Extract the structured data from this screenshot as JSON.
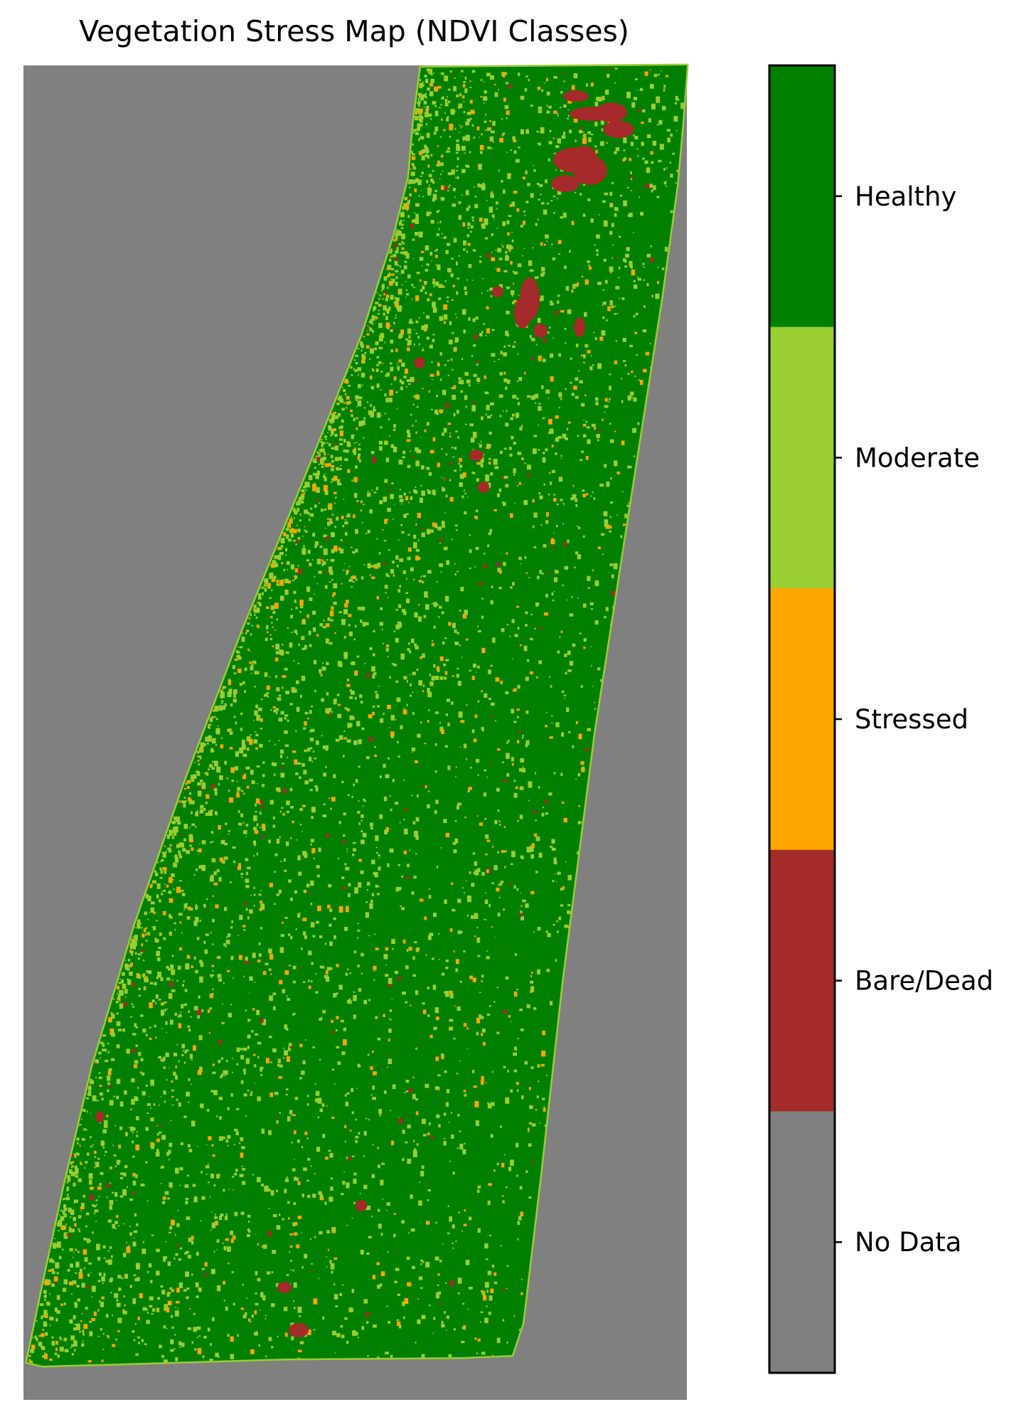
{
  "title": "Vegetation Stress Map (NDVI Classes)",
  "colors": {
    "no_data": "#808080",
    "bare_dead": "#a52a2a",
    "stressed": "#ffa500",
    "moderate": "#9acd32",
    "healthy": "#008000"
  },
  "colorbar": {
    "classes": [
      {
        "label": "Healthy",
        "color": "#008000"
      },
      {
        "label": "Moderate",
        "color": "#9acd32"
      },
      {
        "label": "Stressed",
        "color": "#ffa500"
      },
      {
        "label": "Bare/Dead",
        "color": "#a52a2a"
      },
      {
        "label": "No Data",
        "color": "#808080"
      }
    ]
  },
  "chart_data": {
    "type": "heatmap",
    "title": "Vegetation Stress Map (NDVI Classes)",
    "classes": [
      "No Data",
      "Bare/Dead",
      "Stressed",
      "Moderate",
      "Healthy"
    ],
    "dominant_class": "Healthy",
    "background_class": "No Data",
    "legend_placement": "right",
    "grid": false
  }
}
